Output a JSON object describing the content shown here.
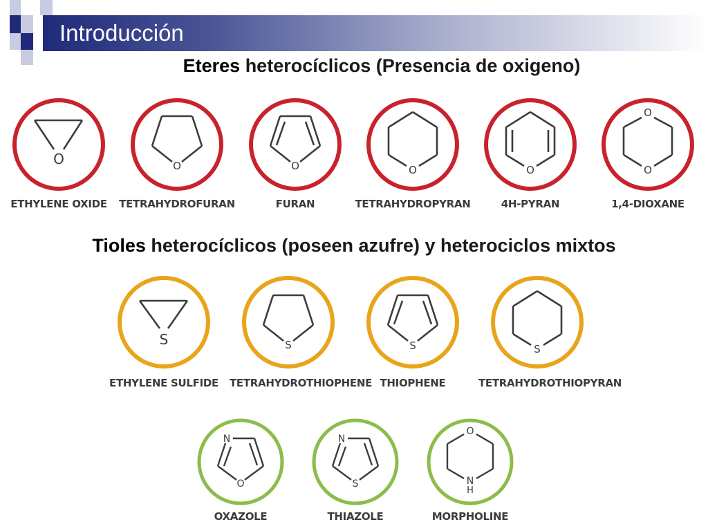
{
  "slide": {
    "title": "Introducción",
    "heading1": {
      "lead": "Eteres",
      "rest": " heterocíclicos (Presencia de oxigeno)"
    },
    "heading2": {
      "lead": "Tioles",
      "rest": " heterocíclicos (poseen azufre) y heterociclos mixtos"
    }
  },
  "colors": {
    "title_bar": "#1f2a7a",
    "oxygen_ring": "#c8232c",
    "sulfur_ring": "#e8a51b",
    "mixed_ring": "#8cbc4a",
    "bond": "#3c3c3c"
  },
  "row1": [
    {
      "name": "ETHYLENE OXIDE",
      "atom": "O"
    },
    {
      "name": "TETRAHYDROFURAN",
      "atom": "O"
    },
    {
      "name": "FURAN",
      "atom": "O"
    },
    {
      "name": "TETRAHYDROPYRAN",
      "atom": "O"
    },
    {
      "name": "4H-PYRAN",
      "atom": "O"
    },
    {
      "name": "1,4-DIOXANE",
      "atom1": "O",
      "atom2": "O"
    }
  ],
  "row2": [
    {
      "name": "ETHYLENE SULFIDE",
      "atom": "S"
    },
    {
      "name": "TETRAHYDROTHIOPHENE",
      "atom": "S"
    },
    {
      "name": "THIOPHENE",
      "atom": "S"
    },
    {
      "name": "TETRAHYDROTHIOPYRAN",
      "atom": "S"
    }
  ],
  "row3": [
    {
      "name": "OXAZOLE",
      "atom1": "N",
      "atom2": "O"
    },
    {
      "name": "THIAZOLE",
      "atom1": "N",
      "atom2": "S"
    },
    {
      "name": "MORPHOLINE",
      "atom1": "O",
      "atom2": "N",
      "atom3": "H"
    }
  ]
}
